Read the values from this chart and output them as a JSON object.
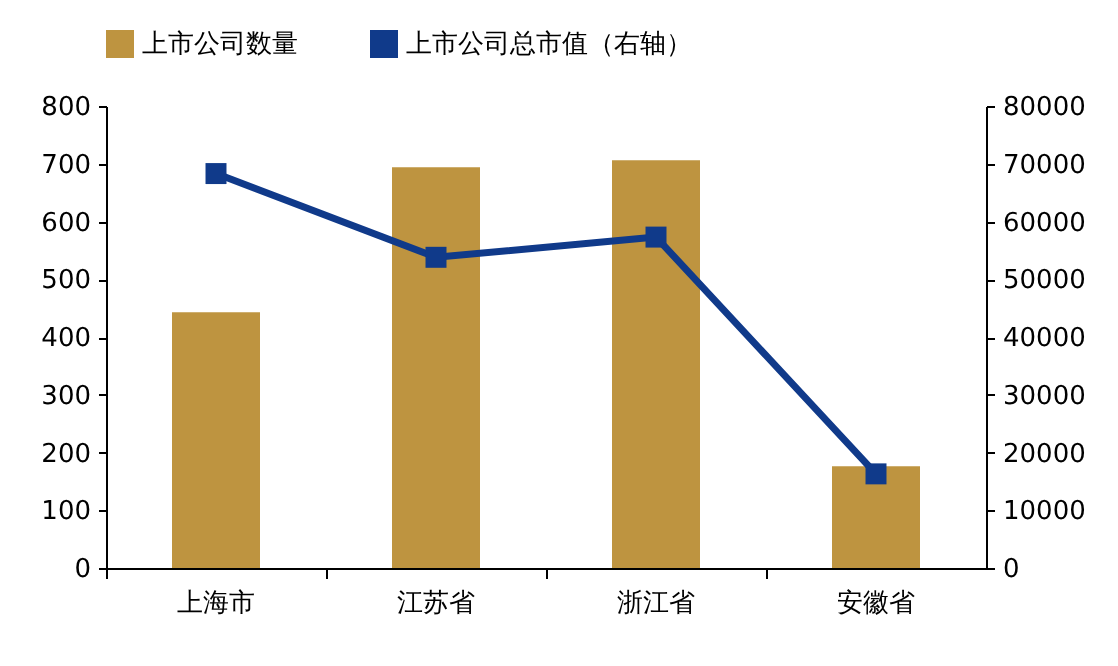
{
  "chart_data": {
    "type": "bar",
    "categories": [
      "上海市",
      "江苏省",
      "浙江省",
      "安徽省"
    ],
    "series": [
      {
        "name": "上市公司数量",
        "color": "#be9440",
        "values": [
          443,
          694,
          706,
          176
        ]
      },
      {
        "name": "上市公司总市值（右轴）",
        "type": "line",
        "axis": "y2",
        "color": "#103a8a",
        "values": [
          68300,
          53800,
          57300,
          16300
        ]
      }
    ],
    "ylim": [
      0,
      800
    ],
    "yticks": [
      0,
      100,
      200,
      300,
      400,
      500,
      600,
      700,
      800
    ],
    "y2lim": [
      0,
      80000
    ],
    "y2ticks": [
      0,
      10000,
      20000,
      30000,
      40000,
      50000,
      60000,
      70000,
      80000
    ],
    "grid": false,
    "legend": "top",
    "marker": "square"
  }
}
